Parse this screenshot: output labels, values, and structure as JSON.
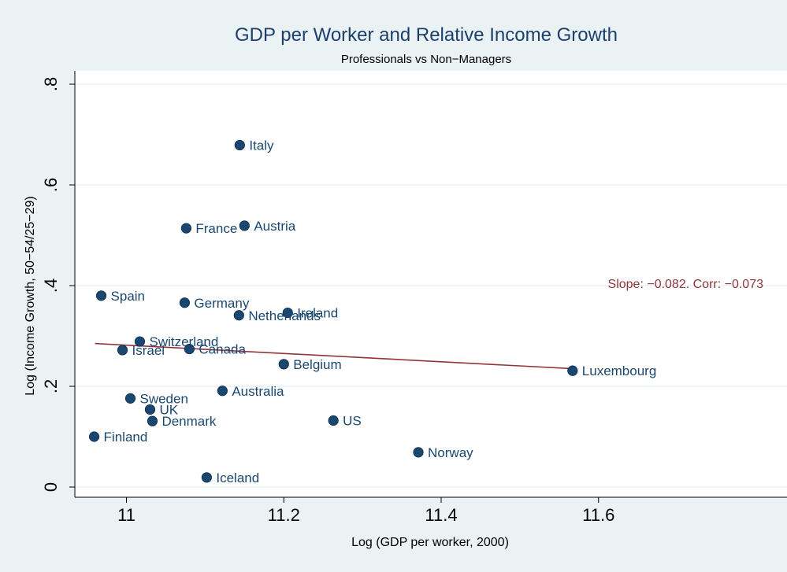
{
  "chart_data": {
    "type": "scatter",
    "title": "GDP per Worker and Relative Income Growth",
    "subtitle": "Professionals vs Non−Managers",
    "xlabel": "Log (GDP per worker, 2000)",
    "ylabel": "Log (Income Growth, 50−54/25−29)",
    "xlim": [
      10.953,
      11.603
    ],
    "ylim": [
      -0.02,
      0.82
    ],
    "xticks": [
      11,
      11.2,
      11.4,
      11.6
    ],
    "xtick_labels": [
      "11",
      "11.2",
      "11.4",
      "11.6"
    ],
    "yticks": [
      0,
      0.2,
      0.4,
      0.6,
      0.8
    ],
    "ytick_labels": [
      "0",
      ".2",
      ".4",
      ".6",
      ".8"
    ],
    "grid": true,
    "points": [
      {
        "label": "Italy",
        "x": 11.144,
        "y": 0.679
      },
      {
        "label": "France",
        "x": 11.076,
        "y": 0.514
      },
      {
        "label": "Austria",
        "x": 11.15,
        "y": 0.519
      },
      {
        "label": "Spain",
        "x": 10.968,
        "y": 0.38
      },
      {
        "label": "Germany",
        "x": 11.074,
        "y": 0.366
      },
      {
        "label": "Netherlands",
        "x": 11.143,
        "y": 0.341
      },
      {
        "label": "Ireland",
        "x": 11.205,
        "y": 0.346
      },
      {
        "label": "Switzerland",
        "x": 11.017,
        "y": 0.289
      },
      {
        "label": "Israel",
        "x": 10.995,
        "y": 0.272
      },
      {
        "label": "Canada",
        "x": 11.08,
        "y": 0.274
      },
      {
        "label": "Belgium",
        "x": 11.2,
        "y": 0.244
      },
      {
        "label": "Luxembourg",
        "x": 11.567,
        "y": 0.231
      },
      {
        "label": "Australia",
        "x": 11.122,
        "y": 0.191
      },
      {
        "label": "Sweden",
        "x": 11.005,
        "y": 0.176
      },
      {
        "label": "UK",
        "x": 11.03,
        "y": 0.154
      },
      {
        "label": "Denmark",
        "x": 11.033,
        "y": 0.131
      },
      {
        "label": "US",
        "x": 11.263,
        "y": 0.132
      },
      {
        "label": "Finland",
        "x": 10.959,
        "y": 0.1
      },
      {
        "label": "Norway",
        "x": 11.371,
        "y": 0.069
      },
      {
        "label": "Iceland",
        "x": 11.102,
        "y": 0.019
      }
    ],
    "fit_line": {
      "x": [
        10.96,
        11.567
      ],
      "y": [
        0.285,
        0.235
      ]
    },
    "annotation": "Slope: −0.082.  Corr: −0.073",
    "colors": {
      "background": "#eaf2f3",
      "plot_bg": "#ffffff",
      "marker": "#1a476f",
      "title": "#1c3f6e",
      "fit_line": "#90353b",
      "grid": "#eaf2f3"
    }
  }
}
